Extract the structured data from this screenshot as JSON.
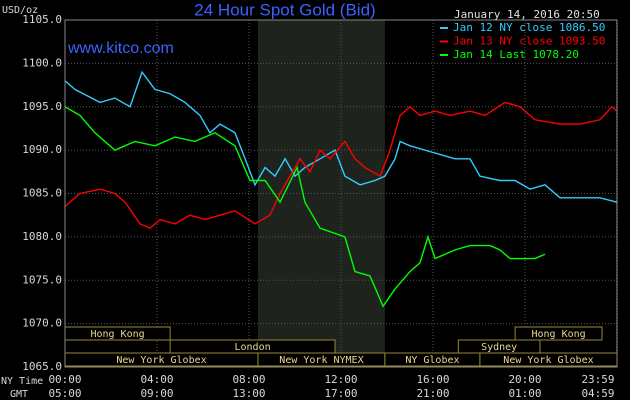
{
  "chart_data": {
    "type": "line",
    "title": "24 Hour Spot Gold (Bid)",
    "subtitle": "January 14, 2016 20:50",
    "watermark": "www.kitco.com",
    "y_label": "USD/oz",
    "x_label": "NY Time",
    "x2_label": "GMT",
    "legend": "top-right",
    "grid": true,
    "xlim": [
      0,
      24
    ],
    "ylim": [
      1065,
      1105
    ],
    "yticks": [
      {
        "value": 1105,
        "label": "1105.0"
      },
      {
        "value": 1100,
        "label": "1100.0"
      },
      {
        "value": 1095,
        "label": "1095.0"
      },
      {
        "value": 1090,
        "label": "1090.0"
      },
      {
        "value": 1085,
        "label": "1085.0"
      },
      {
        "value": 1080,
        "label": "1080.0"
      },
      {
        "value": 1075,
        "label": "1075.0"
      },
      {
        "value": 1070,
        "label": "1070.0"
      },
      {
        "value": 1065,
        "label": "1065.0"
      }
    ],
    "xticks": [
      {
        "value": 0,
        "label": "00:00"
      },
      {
        "value": 4,
        "label": "04:00"
      },
      {
        "value": 8,
        "label": "08:00"
      },
      {
        "value": 12,
        "label": "12:00"
      },
      {
        "value": 16,
        "label": "16:00"
      },
      {
        "value": 20,
        "label": "20:00"
      },
      {
        "value": 23.98,
        "label": "23:59"
      }
    ],
    "x2ticks": [
      {
        "value": 0,
        "label": "05:00"
      },
      {
        "value": 4,
        "label": "09:00"
      },
      {
        "value": 8,
        "label": "13:00"
      },
      {
        "value": 12,
        "label": "17:00"
      },
      {
        "value": 16,
        "label": "21:00"
      },
      {
        "value": 20,
        "label": "01:00"
      },
      {
        "value": 23.98,
        "label": "04:59"
      }
    ],
    "sessions": [
      {
        "label": "Hong Kong",
        "row": 1,
        "start": 0,
        "end": 4.57
      },
      {
        "label": "Hong Kong",
        "row": 1,
        "start": 19.57,
        "end": 23.35
      },
      {
        "label": "London",
        "row": 2,
        "start": 4.57,
        "end": 11.74
      },
      {
        "label": "Sydney",
        "row": 2,
        "start": 17.1,
        "end": 20.65
      },
      {
        "label": "New York Globex",
        "row": 3,
        "start": 0,
        "end": 8.39
      },
      {
        "label": "New York NYMEX",
        "row": 3,
        "start": 8.39,
        "end": 13.91,
        "shade": true
      },
      {
        "label": "NY Globex",
        "row": 3,
        "start": 13.91,
        "end": 18.04
      },
      {
        "label": "New York Globex",
        "row": 3,
        "start": 18.04,
        "end": 24
      }
    ],
    "series": [
      {
        "name": "Jan 12 NY close 1086.50",
        "color": "#33ccff",
        "x": [
          0,
          0.43,
          1.52,
          2.17,
          2.83,
          3.35,
          3.91,
          4.57,
          5.22,
          5.87,
          6.3,
          6.74,
          7.39,
          7.83,
          8.26,
          8.7,
          9.13,
          9.57,
          10,
          10.43,
          11.09,
          11.74,
          12.17,
          12.83,
          13.48,
          13.91,
          14.35,
          14.57,
          15,
          15.65,
          16.3,
          16.96,
          17.61,
          18.04,
          18.91,
          19.57,
          20.22,
          20.87,
          21.52,
          22.39,
          23.26,
          24
        ],
        "values": [
          1098,
          1097,
          1095.5,
          1096,
          1095,
          1099,
          1097,
          1096.5,
          1095.5,
          1094,
          1092,
          1093,
          1092,
          1089,
          1086,
          1088,
          1087,
          1089,
          1087,
          1088,
          1089,
          1090,
          1087,
          1086,
          1086.5,
          1087,
          1089,
          1091,
          1090.5,
          1090,
          1089.5,
          1089,
          1089,
          1087,
          1086.5,
          1086.5,
          1085.5,
          1086,
          1084.5,
          1084.5,
          1084.5,
          1084
        ]
      },
      {
        "name": "Jan 13 NY close 1093.50",
        "color": "#ff0000",
        "x": [
          0,
          0.65,
          1.52,
          2.17,
          2.61,
          3.26,
          3.7,
          4.13,
          4.78,
          5.43,
          6.09,
          6.74,
          7.39,
          8.26,
          8.91,
          9.35,
          9.78,
          10.22,
          10.65,
          11.09,
          11.52,
          12.17,
          12.61,
          13.04,
          13.7,
          14.13,
          14.57,
          15,
          15.43,
          16.09,
          16.74,
          17.61,
          18.26,
          19.13,
          19.78,
          20.43,
          21.52,
          22.39,
          23.26,
          23.78,
          24
        ],
        "values": [
          1083.5,
          1085,
          1085.5,
          1085,
          1084,
          1081.5,
          1081,
          1082,
          1081.5,
          1082.5,
          1082,
          1082.5,
          1083,
          1081.5,
          1082.5,
          1085,
          1087,
          1089,
          1087.5,
          1090,
          1089,
          1091,
          1089,
          1088,
          1087,
          1090,
          1094,
          1095,
          1094,
          1094.5,
          1094,
          1094.5,
          1094,
          1095.5,
          1095,
          1093.5,
          1093,
          1093,
          1093.5,
          1095,
          1094.5
        ]
      },
      {
        "name": "Jan 14 Last 1078.20",
        "color": "#00ff00",
        "x": [
          0,
          0.65,
          1.3,
          2.17,
          3.04,
          3.91,
          4.78,
          5.65,
          6.52,
          7.39,
          8.04,
          8.7,
          9.35,
          10.09,
          10.43,
          11.09,
          12.17,
          12.61,
          13.26,
          13.83,
          14.35,
          15,
          15.43,
          15.78,
          16.09,
          16.96,
          17.61,
          18.48,
          18.91,
          19.35,
          20,
          20.43,
          20.87
        ],
        "values": [
          1095,
          1094,
          1092,
          1090,
          1091,
          1090.5,
          1091.5,
          1091,
          1092,
          1090.5,
          1086.5,
          1086.5,
          1084,
          1088,
          1084,
          1081,
          1080,
          1076,
          1075.5,
          1072,
          1074,
          1076,
          1077,
          1080,
          1077.5,
          1078.5,
          1079,
          1079,
          1078.5,
          1077.5,
          1077.5,
          1077.5,
          1078
        ]
      }
    ]
  }
}
